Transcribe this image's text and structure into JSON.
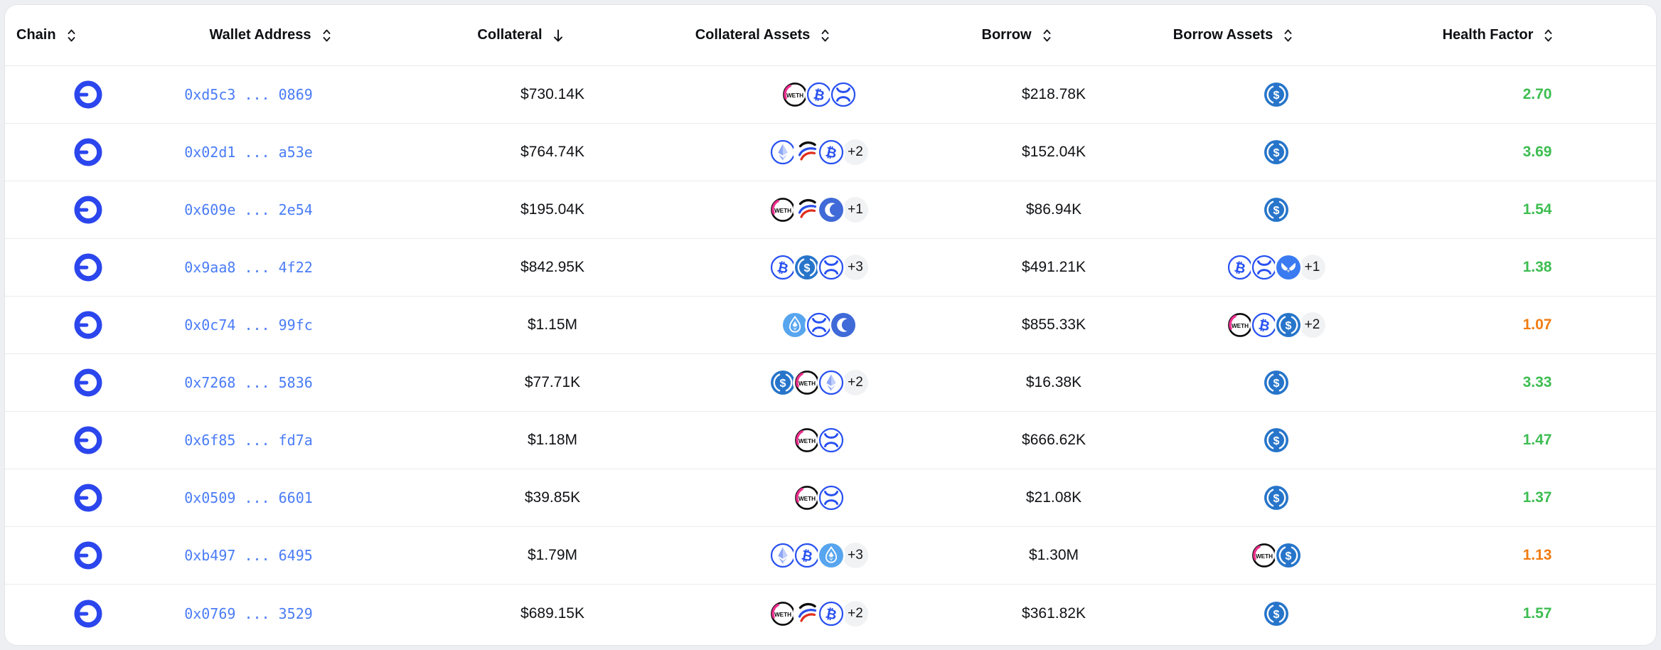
{
  "table": {
    "columns": [
      {
        "key": "chain",
        "label": "Chain",
        "sort": "both"
      },
      {
        "key": "wallet_address",
        "label": "Wallet Address",
        "sort": "both"
      },
      {
        "key": "collateral",
        "label": "Collateral",
        "sort": "desc"
      },
      {
        "key": "collateral_assets",
        "label": "Collateral Assets",
        "sort": "both"
      },
      {
        "key": "borrow",
        "label": "Borrow",
        "sort": "both"
      },
      {
        "key": "borrow_assets",
        "label": "Borrow Assets",
        "sort": "both"
      },
      {
        "key": "health_factor",
        "label": "Health Factor",
        "sort": "both"
      }
    ],
    "rows": [
      {
        "chain": "base",
        "wallet": "0xd5c3 ... 0869",
        "collateral": "$730.14K",
        "collateral_assets": {
          "tokens": [
            "weth",
            "cbbtc",
            "xrp"
          ],
          "more": null
        },
        "borrow": "$218.78K",
        "borrow_assets": {
          "tokens": [
            "usdc"
          ],
          "more": null
        },
        "health": {
          "value": "2.70",
          "color": "green"
        }
      },
      {
        "chain": "base",
        "wallet": "0x02d1 ... a53e",
        "collateral": "$764.74K",
        "collateral_assets": {
          "tokens": [
            "eth",
            "swoosh",
            "cbbtc"
          ],
          "more": "+2"
        },
        "borrow": "$152.04K",
        "borrow_assets": {
          "tokens": [
            "usdc"
          ],
          "more": null
        },
        "health": {
          "value": "3.69",
          "color": "green"
        }
      },
      {
        "chain": "base",
        "wallet": "0x609e ... 2e54",
        "collateral": "$195.04K",
        "collateral_assets": {
          "tokens": [
            "weth",
            "swoosh",
            "moon"
          ],
          "more": "+1"
        },
        "borrow": "$86.94K",
        "borrow_assets": {
          "tokens": [
            "usdc"
          ],
          "more": null
        },
        "health": {
          "value": "1.54",
          "color": "green"
        }
      },
      {
        "chain": "base",
        "wallet": "0x9aa8 ... 4f22",
        "collateral": "$842.95K",
        "collateral_assets": {
          "tokens": [
            "cbbtc",
            "usdc",
            "xrp"
          ],
          "more": "+3"
        },
        "borrow": "$491.21K",
        "borrow_assets": {
          "tokens": [
            "cbbtc",
            "xrp",
            "butterfly"
          ],
          "more": "+1"
        },
        "health": {
          "value": "1.38",
          "color": "green"
        }
      },
      {
        "chain": "base",
        "wallet": "0x0c74 ... 99fc",
        "collateral": "$1.15M",
        "collateral_assets": {
          "tokens": [
            "wsteth",
            "xrp",
            "moon"
          ],
          "more": null
        },
        "borrow": "$855.33K",
        "borrow_assets": {
          "tokens": [
            "weth",
            "cbbtc",
            "usdc"
          ],
          "more": "+2"
        },
        "health": {
          "value": "1.07",
          "color": "orange"
        }
      },
      {
        "chain": "base",
        "wallet": "0x7268 ... 5836",
        "collateral": "$77.71K",
        "collateral_assets": {
          "tokens": [
            "usdc",
            "weth",
            "eth"
          ],
          "more": "+2"
        },
        "borrow": "$16.38K",
        "borrow_assets": {
          "tokens": [
            "usdc"
          ],
          "more": null
        },
        "health": {
          "value": "3.33",
          "color": "green"
        }
      },
      {
        "chain": "base",
        "wallet": "0x6f85 ... fd7a",
        "collateral": "$1.18M",
        "collateral_assets": {
          "tokens": [
            "weth",
            "xrp"
          ],
          "more": null
        },
        "borrow": "$666.62K",
        "borrow_assets": {
          "tokens": [
            "usdc"
          ],
          "more": null
        },
        "health": {
          "value": "1.47",
          "color": "green"
        }
      },
      {
        "chain": "base",
        "wallet": "0x0509 ... 6601",
        "collateral": "$39.85K",
        "collateral_assets": {
          "tokens": [
            "weth",
            "xrp"
          ],
          "more": null
        },
        "borrow": "$21.08K",
        "borrow_assets": {
          "tokens": [
            "usdc"
          ],
          "more": null
        },
        "health": {
          "value": "1.37",
          "color": "green"
        }
      },
      {
        "chain": "base",
        "wallet": "0xb497 ... 6495",
        "collateral": "$1.79M",
        "collateral_assets": {
          "tokens": [
            "eth",
            "cbbtc",
            "wsteth"
          ],
          "more": "+3"
        },
        "borrow": "$1.30M",
        "borrow_assets": {
          "tokens": [
            "weth",
            "usdc"
          ],
          "more": null
        },
        "health": {
          "value": "1.13",
          "color": "orange"
        }
      },
      {
        "chain": "base",
        "wallet": "0x0769 ... 3529",
        "collateral": "$689.15K",
        "collateral_assets": {
          "tokens": [
            "weth",
            "swoosh",
            "cbbtc"
          ],
          "more": "+2"
        },
        "borrow": "$361.82K",
        "borrow_assets": {
          "tokens": [
            "usdc"
          ],
          "more": null
        },
        "health": {
          "value": "1.57",
          "color": "green"
        }
      }
    ]
  },
  "colors": {
    "chain_blue": "#2b46ed",
    "address_blue": "#4a7cf6",
    "health_green": "#3dbd51",
    "health_orange": "#f07c12",
    "usdc_blue": "#2775CA",
    "token_blue": "#2750f0"
  },
  "icon_names": {
    "chain": "base-chain-icon",
    "sort_both": "sort-chevrons-icon",
    "sort_desc": "arrow-down-icon",
    "weth": "weth-token-icon",
    "cbbtc": "cbbtc-token-icon",
    "xrp": "xrp-token-icon",
    "usdc": "usdc-token-icon",
    "eth": "eth-token-icon",
    "wsteth": "wsteth-token-icon",
    "swoosh": "striped-swoosh-token-icon",
    "moon": "crescent-moon-token-icon",
    "butterfly": "butterfly-token-icon"
  }
}
